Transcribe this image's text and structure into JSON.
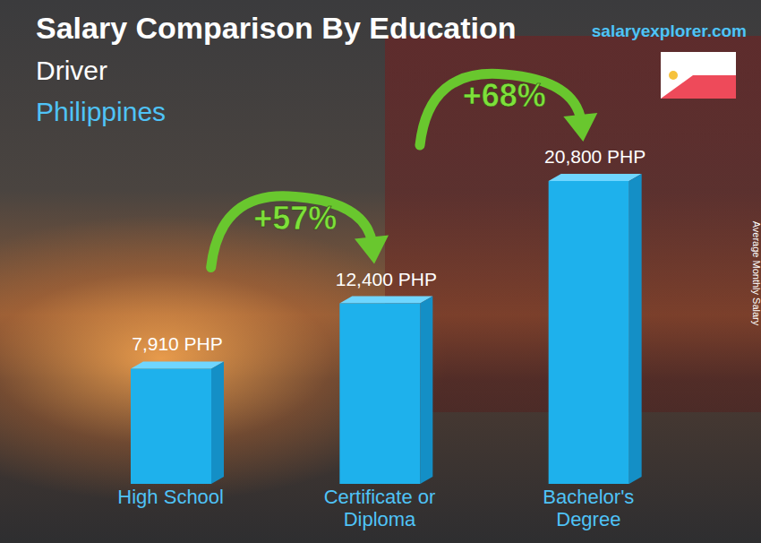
{
  "chart_data": {
    "type": "bar",
    "title": "Salary Comparison By Education",
    "subtitle": [
      "Driver",
      "Philippines"
    ],
    "source": "salaryexplorer.com",
    "y_label": "Average Monthly Salary",
    "categories": [
      "High School",
      "Certificate or Diploma",
      "Bachelor's Degree"
    ],
    "values": [
      7910,
      12400,
      20800
    ],
    "value_labels": [
      "7,910 PHP",
      "12,400 PHP",
      "20,800 PHP"
    ],
    "color": "#1eb1ec",
    "ylim": [
      0,
      24000
    ],
    "tick_labels": "x",
    "grid": false,
    "data_labels": true,
    "annotations": [
      "+57%",
      "+68%"
    ]
  }
}
